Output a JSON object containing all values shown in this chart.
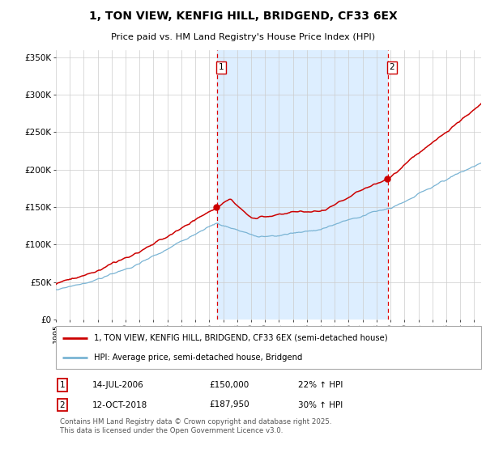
{
  "title": "1, TON VIEW, KENFIG HILL, BRIDGEND, CF33 6EX",
  "subtitle": "Price paid vs. HM Land Registry's House Price Index (HPI)",
  "legend_property": "1, TON VIEW, KENFIG HILL, BRIDGEND, CF33 6EX (semi-detached house)",
  "legend_hpi": "HPI: Average price, semi-detached house, Bridgend",
  "annotation1_label": "1",
  "annotation1_date": "14-JUL-2006",
  "annotation1_value": 150000,
  "annotation1_pct": "22% ↑ HPI",
  "annotation2_label": "2",
  "annotation2_date": "12-OCT-2018",
  "annotation2_value": 187950,
  "annotation2_pct": "30% ↑ HPI",
  "vline1_x": 2006.54,
  "vline2_x": 2018.79,
  "ylim": [
    0,
    360000
  ],
  "xlim_start": 1995.0,
  "xlim_end": 2025.5,
  "property_color": "#cc0000",
  "hpi_color": "#7ab4d4",
  "background_color": "#ddeeff",
  "footer": "Contains HM Land Registry data © Crown copyright and database right 2025.\nThis data is licensed under the Open Government Licence v3.0.",
  "yticks": [
    0,
    50000,
    100000,
    150000,
    200000,
    250000,
    300000,
    350000
  ],
  "ytick_labels": [
    "£0",
    "£50K",
    "£100K",
    "£150K",
    "£200K",
    "£250K",
    "£300K",
    "£350K"
  ]
}
